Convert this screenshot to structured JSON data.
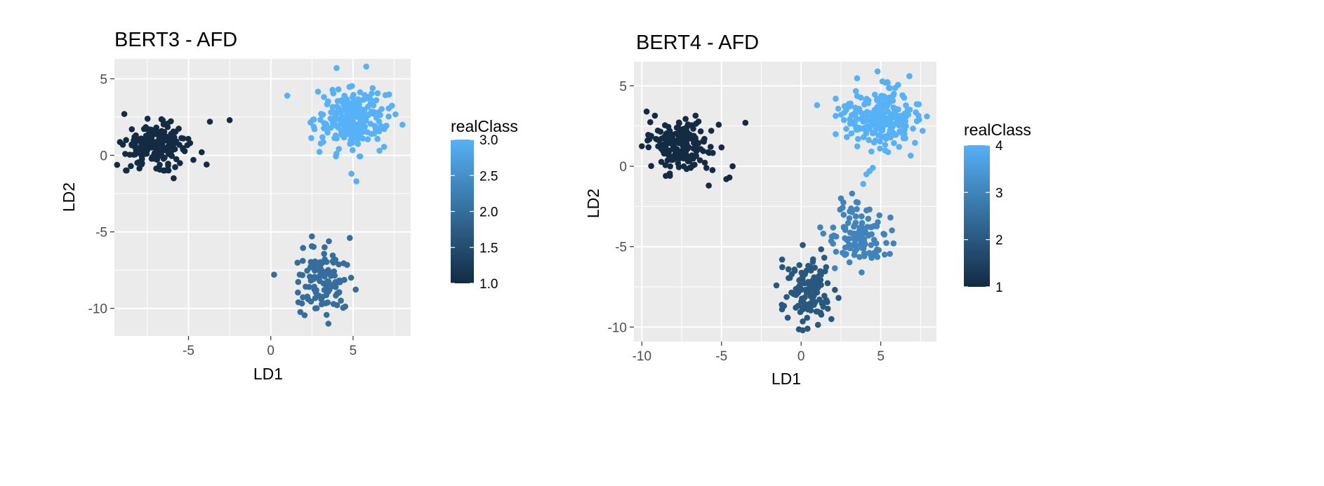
{
  "chart_data": [
    {
      "type": "scatter",
      "title": "BERT3 - AFD",
      "xlabel": "LD1",
      "ylabel": "LD2",
      "xlim": [
        -9.5,
        8.5
      ],
      "ylim": [
        -11.8,
        6.3
      ],
      "xticks": [
        -5,
        0,
        5
      ],
      "yticks": [
        5,
        0,
        -5,
        -10
      ],
      "xticklabels": [
        "-5",
        "0",
        "5"
      ],
      "yticklabels": [
        "5",
        "0",
        "-5",
        "-10"
      ],
      "grid": true,
      "legend": {
        "title": "realClass",
        "position": "right",
        "range": [
          1.0,
          3.0
        ],
        "ticks": [
          3.0,
          2.5,
          2.0,
          1.5,
          1.0
        ],
        "labels": [
          "3.0",
          "2.5",
          "2.0",
          "1.5",
          "1.0"
        ],
        "low_color": "#132B43",
        "high_color": "#56B1F7"
      },
      "clusters": [
        {
          "class": 1,
          "center": [
            -7.0,
            0.7
          ],
          "spread": [
            0.9,
            0.65
          ],
          "count": 210,
          "outliers": [
            [
              -8.9,
              2.7
            ],
            [
              -3.7,
              2.2
            ],
            [
              -2.5,
              2.3
            ],
            [
              -4.2,
              0.2
            ],
            [
              -3.9,
              -0.6
            ],
            [
              -4.7,
              -0.3
            ],
            [
              -8.5,
              -0.7
            ],
            [
              -5.9,
              -1.5
            ]
          ]
        },
        {
          "class": 2,
          "center": [
            3.2,
            -8.3
          ],
          "spread": [
            0.9,
            1.05
          ],
          "count": 110,
          "outliers": [
            [
              0.2,
              -7.8
            ],
            [
              2.5,
              -5.3
            ],
            [
              4.8,
              -5.4
            ],
            [
              3.5,
              -11.0
            ]
          ]
        },
        {
          "class": 3,
          "center": [
            4.9,
            2.4
          ],
          "spread": [
            1.05,
            0.95
          ],
          "count": 230,
          "outliers": [
            [
              1.0,
              3.9
            ],
            [
              4.0,
              5.7
            ],
            [
              5.8,
              5.8
            ],
            [
              8.0,
              2.0
            ],
            [
              5.2,
              -1.7
            ],
            [
              4.9,
              -1.2
            ]
          ]
        }
      ]
    },
    {
      "type": "scatter",
      "title": "BERT4 - AFD",
      "xlabel": "LD1",
      "ylabel": "LD2",
      "xlim": [
        -10.5,
        8.5
      ],
      "ylim": [
        -10.9,
        6.5
      ],
      "xticks": [
        -10,
        -5,
        0,
        5
      ],
      "yticks": [
        5,
        0,
        -5,
        -10
      ],
      "xticklabels": [
        "-10",
        "-5",
        "0",
        "5"
      ],
      "yticklabels": [
        "5",
        "0",
        "-5",
        "-10"
      ],
      "grid": true,
      "legend": {
        "title": "realClass",
        "position": "right",
        "range": [
          1,
          4
        ],
        "ticks": [
          4,
          3,
          2,
          1
        ],
        "labels": [
          "4",
          "3",
          "2",
          "1"
        ],
        "low_color": "#132B43",
        "high_color": "#56B1F7"
      },
      "clusters": [
        {
          "class": 1,
          "center": [
            -7.6,
            1.4
          ],
          "spread": [
            1.0,
            0.8
          ],
          "count": 170,
          "outliers": [
            [
              -9.7,
              3.4
            ],
            [
              -3.5,
              2.7
            ],
            [
              -4.5,
              -0.7
            ],
            [
              -4.7,
              -0.8
            ],
            [
              -5.8,
              -1.2
            ],
            [
              -8.5,
              -0.6
            ],
            [
              -4.3,
              0.0
            ]
          ]
        },
        {
          "class": 2,
          "center": [
            0.4,
            -7.7
          ],
          "spread": [
            0.75,
            1.05
          ],
          "count": 120,
          "outliers": [
            [
              -1.2,
              -8.9
            ],
            [
              0.1,
              -4.9
            ],
            [
              0.1,
              -10.2
            ],
            [
              0.4,
              -10.1
            ],
            [
              1.9,
              -9.5
            ]
          ]
        },
        {
          "class": 3,
          "center": [
            3.6,
            -4.3
          ],
          "spread": [
            0.85,
            0.95
          ],
          "count": 110,
          "outliers": [
            [
              2.5,
              -2.0
            ],
            [
              3.2,
              -1.7
            ],
            [
              5.8,
              -4.8
            ],
            [
              3.8,
              -6.6
            ],
            [
              1.2,
              -3.8
            ]
          ]
        },
        {
          "class": 4,
          "center": [
            4.9,
            3.0
          ],
          "spread": [
            1.05,
            0.95
          ],
          "count": 230,
          "outliers": [
            [
              1.0,
              3.8
            ],
            [
              4.8,
              5.9
            ],
            [
              6.8,
              5.6
            ],
            [
              7.9,
              3.1
            ],
            [
              4.3,
              -0.3
            ],
            [
              4.5,
              -0.1
            ],
            [
              4.1,
              -0.5
            ],
            [
              3.9,
              -1.1
            ]
          ]
        }
      ]
    }
  ]
}
